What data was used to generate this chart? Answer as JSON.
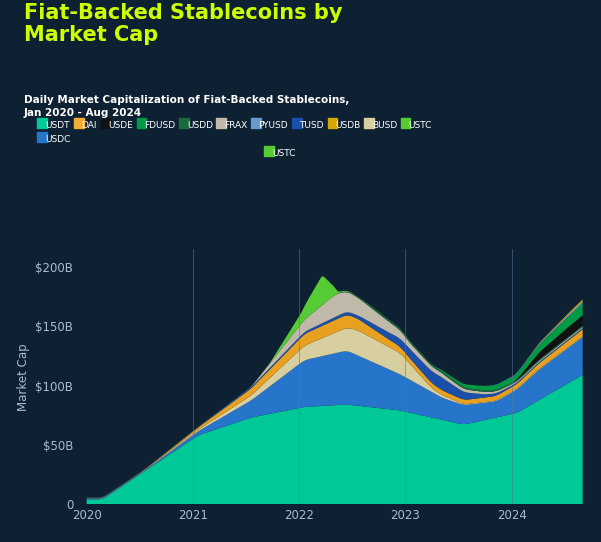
{
  "title_main": "Fiat-Backed Stablecoins by\nMarket Cap",
  "title_sub": "Daily Market Capitalization of Fiat-Backed Stablecoins,\nJan 2020 - Aug 2024",
  "ylabel": "Market Cap",
  "background_color": "#0e2133",
  "plot_bg_color": "#0e2133",
  "title_color": "#ccff00",
  "subtitle_color": "#ffffff",
  "legend_color": "#ffffff",
  "grid_color": "#557799",
  "ytick_color": "#aabbcc",
  "xtick_color": "#aabbcc",
  "legend_items": [
    {
      "label": "USDT",
      "color": "#00c896"
    },
    {
      "label": "USDC",
      "color": "#2775ca"
    },
    {
      "label": "DAI",
      "color": "#f5ac37"
    },
    {
      "label": "USDE",
      "color": "#111111"
    },
    {
      "label": "FDUSD",
      "color": "#009944"
    },
    {
      "label": "USDD",
      "color": "#1a6b3c"
    },
    {
      "label": "FRAX",
      "color": "#c0b8a8"
    },
    {
      "label": "PYUSD",
      "color": "#6699cc"
    },
    {
      "label": "TUSD",
      "color": "#1a50aa"
    },
    {
      "label": "USDB",
      "color": "#d4a800"
    },
    {
      "label": "BUSD",
      "color": "#d8cfa0"
    },
    {
      "label": "USTC",
      "color": "#55cc33"
    }
  ],
  "x_years": [
    2020,
    2021,
    2022,
    2023,
    2024
  ],
  "ytick_labels": [
    "0",
    "$50B",
    "$100B",
    "$150B",
    "$200B"
  ],
  "ylim": [
    0,
    215
  ]
}
